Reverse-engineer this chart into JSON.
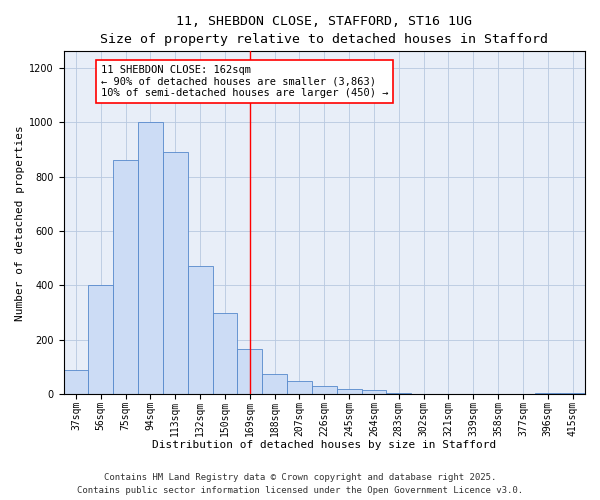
{
  "title_line1": "11, SHEBDON CLOSE, STAFFORD, ST16 1UG",
  "title_line2": "Size of property relative to detached houses in Stafford",
  "xlabel": "Distribution of detached houses by size in Stafford",
  "ylabel": "Number of detached properties",
  "categories": [
    "37sqm",
    "56sqm",
    "75sqm",
    "94sqm",
    "113sqm",
    "132sqm",
    "150sqm",
    "169sqm",
    "188sqm",
    "207sqm",
    "226sqm",
    "245sqm",
    "264sqm",
    "283sqm",
    "302sqm",
    "321sqm",
    "339sqm",
    "358sqm",
    "377sqm",
    "396sqm",
    "415sqm"
  ],
  "values": [
    90,
    400,
    860,
    1000,
    890,
    470,
    300,
    165,
    75,
    50,
    30,
    20,
    15,
    5,
    2,
    0,
    0,
    0,
    0,
    5,
    5
  ],
  "bar_color": "#ccdcf5",
  "bar_edge_color": "#5588cc",
  "grid_color": "#b8c8e0",
  "bg_color": "#e8eef8",
  "vline_x_index": 7,
  "vline_color": "red",
  "annotation_text": "11 SHEBDON CLOSE: 162sqm\n← 90% of detached houses are smaller (3,863)\n10% of semi-detached houses are larger (450) →",
  "annotation_box_color": "red",
  "annotation_bg": "white",
  "ylim": [
    0,
    1260
  ],
  "yticks": [
    0,
    200,
    400,
    600,
    800,
    1000,
    1200
  ],
  "footer_line1": "Contains HM Land Registry data © Crown copyright and database right 2025.",
  "footer_line2": "Contains public sector information licensed under the Open Government Licence v3.0.",
  "title_fontsize": 9.5,
  "subtitle_fontsize": 8.5,
  "axis_label_fontsize": 8,
  "tick_fontsize": 7,
  "annotation_fontsize": 7.5,
  "footer_fontsize": 6.5
}
